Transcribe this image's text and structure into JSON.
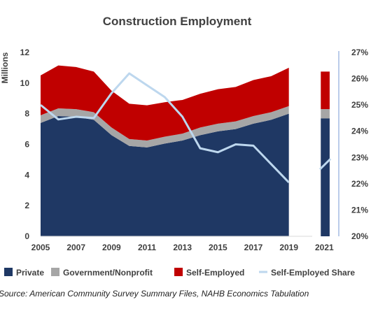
{
  "chart_data": {
    "type": "area",
    "title": "Construction Employment",
    "ylabel": "Millions",
    "y2label": "",
    "ylim": [
      0,
      12
    ],
    "y2lim": [
      20,
      27
    ],
    "y_ticks": [
      "0",
      "2",
      "4",
      "6",
      "8",
      "10",
      "12"
    ],
    "y2_ticks": [
      "20%",
      "21%",
      "22%",
      "23%",
      "24%",
      "25%",
      "26%",
      "27%"
    ],
    "x": [
      2005,
      2006,
      2007,
      2008,
      2009,
      2010,
      2011,
      2012,
      2013,
      2014,
      2015,
      2016,
      2017,
      2018,
      2019,
      2021
    ],
    "x_ticks": [
      "2005",
      "2007",
      "2009",
      "2011",
      "2013",
      "2015",
      "2017",
      "2019",
      "2021"
    ],
    "series": [
      {
        "name": "Private",
        "color": "#1f3864",
        "values": [
          7.4,
          7.85,
          7.8,
          7.6,
          6.6,
          5.9,
          5.8,
          6.05,
          6.25,
          6.6,
          6.85,
          7.0,
          7.35,
          7.6,
          8.0,
          7.7
        ]
      },
      {
        "name": "Government/Nonprofit",
        "color": "#a6a6a6",
        "values": [
          0.5,
          0.5,
          0.5,
          0.5,
          0.5,
          0.45,
          0.45,
          0.45,
          0.45,
          0.5,
          0.5,
          0.5,
          0.5,
          0.5,
          0.5,
          0.6
        ]
      },
      {
        "name": "Self-Employed",
        "color": "#c00000",
        "values": [
          2.6,
          2.8,
          2.75,
          2.65,
          2.4,
          2.3,
          2.3,
          2.25,
          2.2,
          2.2,
          2.25,
          2.25,
          2.35,
          2.35,
          2.5,
          2.45
        ]
      },
      {
        "name": "Self-Employed Share",
        "color": "#bdd7ee",
        "axis": "right",
        "values": [
          25.0,
          24.45,
          24.55,
          24.5,
          25.45,
          26.2,
          25.75,
          25.3,
          24.55,
          23.35,
          23.2,
          23.5,
          23.45,
          22.75,
          22.05,
          22.95
        ]
      }
    ],
    "legend_position": "bottom",
    "grid": false
  },
  "source": "Source: American Community Survey Summary Files, NAHB Economics Tabulation",
  "colors": {
    "text": "#404040",
    "axis_line": "#8eaadb",
    "right_axis": "#8eaadb"
  }
}
